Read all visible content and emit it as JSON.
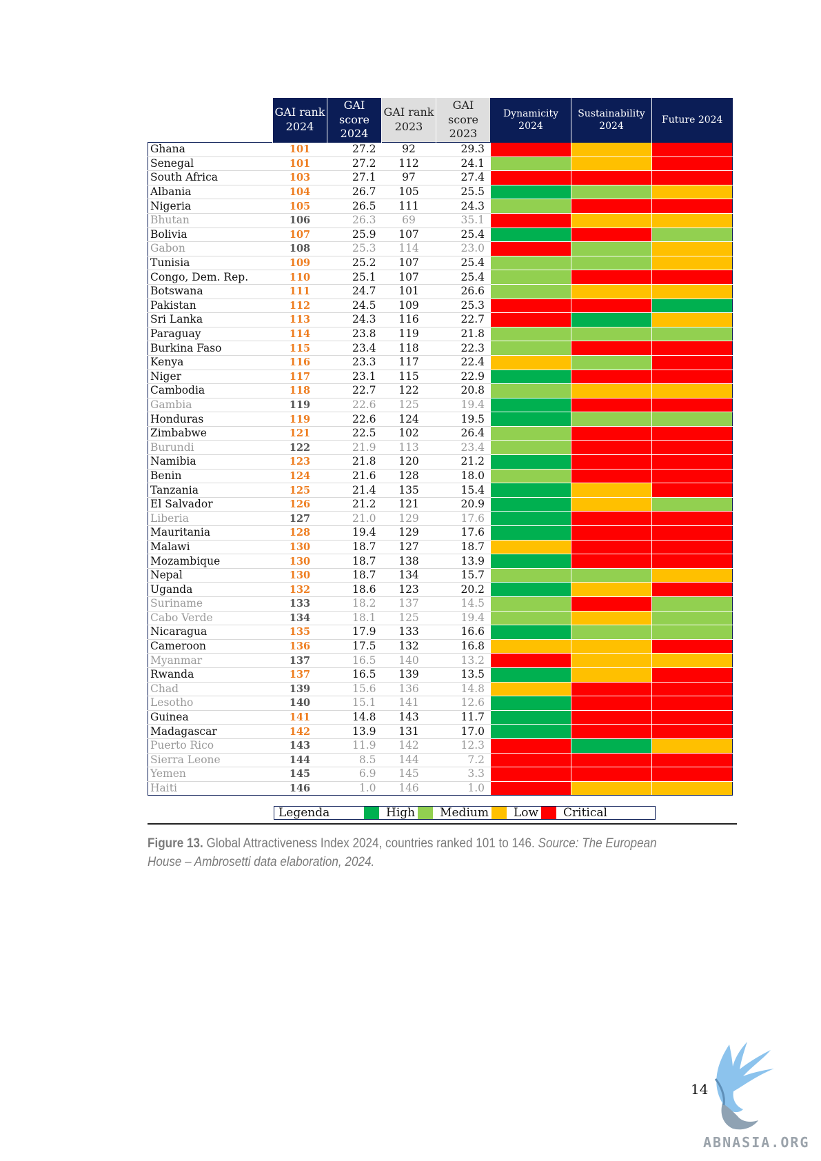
{
  "colors": {
    "High": "#00b050",
    "Medium": "#92d050",
    "Low": "#ffc000",
    "Critical": "#ff0000",
    "header_dark": "#0b1d56",
    "rank_orange": "#ee7d1f"
  },
  "table": {
    "headers": {
      "rank_2024": [
        "GAI rank",
        "2024"
      ],
      "score_2024": [
        "GAI score",
        "2024"
      ],
      "rank_2023": [
        "GAI rank",
        "2023"
      ],
      "score_2023": [
        "GAI score",
        "2023"
      ],
      "dynamicity": [
        "Dynamicity",
        "2024"
      ],
      "sustainability": [
        "Sustainability",
        "2024"
      ],
      "future": [
        "Future 2024"
      ]
    },
    "rows": [
      {
        "country": "Ghana",
        "rank_2024": "101",
        "score_2024": "27.2",
        "rank_2023": "92",
        "score_2023": "29.3",
        "dynamicity": "Critical",
        "sustainability": "Low",
        "future": "Critical",
        "greyed": false
      },
      {
        "country": "Senegal",
        "rank_2024": "101",
        "score_2024": "27.2",
        "rank_2023": "112",
        "score_2023": "24.1",
        "dynamicity": "Medium",
        "sustainability": "Low",
        "future": "Critical",
        "greyed": false
      },
      {
        "country": "South Africa",
        "rank_2024": "103",
        "score_2024": "27.1",
        "rank_2023": "97",
        "score_2023": "27.4",
        "dynamicity": "Critical",
        "sustainability": "Critical",
        "future": "Critical",
        "greyed": false
      },
      {
        "country": "Albania",
        "rank_2024": "104",
        "score_2024": "26.7",
        "rank_2023": "105",
        "score_2023": "25.5",
        "dynamicity": "High",
        "sustainability": "Medium",
        "future": "Low",
        "greyed": false
      },
      {
        "country": "Nigeria",
        "rank_2024": "105",
        "score_2024": "26.5",
        "rank_2023": "111",
        "score_2023": "24.3",
        "dynamicity": "Medium",
        "sustainability": "Critical",
        "future": "Critical",
        "greyed": false
      },
      {
        "country": "Bhutan",
        "rank_2024": "106",
        "score_2024": "26.3",
        "rank_2023": "69",
        "score_2023": "35.1",
        "dynamicity": "Critical",
        "sustainability": "Low",
        "future": "Low",
        "greyed": true
      },
      {
        "country": "Bolivia",
        "rank_2024": "107",
        "score_2024": "25.9",
        "rank_2023": "107",
        "score_2023": "25.4",
        "dynamicity": "High",
        "sustainability": "Critical",
        "future": "Medium",
        "greyed": false
      },
      {
        "country": "Gabon",
        "rank_2024": "108",
        "score_2024": "25.3",
        "rank_2023": "114",
        "score_2023": "23.0",
        "dynamicity": "Critical",
        "sustainability": "Medium",
        "future": "Low",
        "greyed": true
      },
      {
        "country": "Tunisia",
        "rank_2024": "109",
        "score_2024": "25.2",
        "rank_2023": "107",
        "score_2023": "25.4",
        "dynamicity": "Medium",
        "sustainability": "Medium",
        "future": "Low",
        "greyed": false
      },
      {
        "country": "Congo, Dem. Rep.",
        "rank_2024": "110",
        "score_2024": "25.1",
        "rank_2023": "107",
        "score_2023": "25.4",
        "dynamicity": "Medium",
        "sustainability": "Critical",
        "future": "Critical",
        "greyed": false
      },
      {
        "country": "Botswana",
        "rank_2024": "111",
        "score_2024": "24.7",
        "rank_2023": "101",
        "score_2023": "26.6",
        "dynamicity": "Medium",
        "sustainability": "Low",
        "future": "Low",
        "greyed": false
      },
      {
        "country": "Pakistan",
        "rank_2024": "112",
        "score_2024": "24.5",
        "rank_2023": "109",
        "score_2023": "25.3",
        "dynamicity": "Critical",
        "sustainability": "Critical",
        "future": "High",
        "greyed": false
      },
      {
        "country": "Sri Lanka",
        "rank_2024": "113",
        "score_2024": "24.3",
        "rank_2023": "116",
        "score_2023": "22.7",
        "dynamicity": "Critical",
        "sustainability": "High",
        "future": "Low",
        "greyed": false
      },
      {
        "country": "Paraguay",
        "rank_2024": "114",
        "score_2024": "23.8",
        "rank_2023": "119",
        "score_2023": "21.8",
        "dynamicity": "Medium",
        "sustainability": "Medium",
        "future": "Medium",
        "greyed": false
      },
      {
        "country": "Burkina Faso",
        "rank_2024": "115",
        "score_2024": "23.4",
        "rank_2023": "118",
        "score_2023": "22.3",
        "dynamicity": "Medium",
        "sustainability": "Critical",
        "future": "Critical",
        "greyed": false
      },
      {
        "country": "Kenya",
        "rank_2024": "116",
        "score_2024": "23.3",
        "rank_2023": "117",
        "score_2023": "22.4",
        "dynamicity": "Low",
        "sustainability": "Medium",
        "future": "Critical",
        "greyed": false
      },
      {
        "country": "Niger",
        "rank_2024": "117",
        "score_2024": "23.1",
        "rank_2023": "115",
        "score_2023": "22.9",
        "dynamicity": "High",
        "sustainability": "Critical",
        "future": "Critical",
        "greyed": false
      },
      {
        "country": "Cambodia",
        "rank_2024": "118",
        "score_2024": "22.7",
        "rank_2023": "122",
        "score_2023": "20.8",
        "dynamicity": "Medium",
        "sustainability": "Low",
        "future": "Low",
        "greyed": false
      },
      {
        "country": "Gambia",
        "rank_2024": "119",
        "score_2024": "22.6",
        "rank_2023": "125",
        "score_2023": "19.4",
        "dynamicity": "High",
        "sustainability": "Critical",
        "future": "Critical",
        "greyed": true
      },
      {
        "country": "Honduras",
        "rank_2024": "119",
        "score_2024": "22.6",
        "rank_2023": "124",
        "score_2023": "19.5",
        "dynamicity": "High",
        "sustainability": "Medium",
        "future": "Medium",
        "greyed": false
      },
      {
        "country": "Zimbabwe",
        "rank_2024": "121",
        "score_2024": "22.5",
        "rank_2023": "102",
        "score_2023": "26.4",
        "dynamicity": "Medium",
        "sustainability": "Critical",
        "future": "Critical",
        "greyed": false
      },
      {
        "country": "Burundi",
        "rank_2024": "122",
        "score_2024": "21.9",
        "rank_2023": "113",
        "score_2023": "23.4",
        "dynamicity": "Medium",
        "sustainability": "Critical",
        "future": "Critical",
        "greyed": true
      },
      {
        "country": "Namibia",
        "rank_2024": "123",
        "score_2024": "21.8",
        "rank_2023": "120",
        "score_2023": "21.2",
        "dynamicity": "High",
        "sustainability": "Critical",
        "future": "Critical",
        "greyed": false
      },
      {
        "country": "Benin",
        "rank_2024": "124",
        "score_2024": "21.6",
        "rank_2023": "128",
        "score_2023": "18.0",
        "dynamicity": "Medium",
        "sustainability": "Critical",
        "future": "Critical",
        "greyed": false
      },
      {
        "country": "Tanzania",
        "rank_2024": "125",
        "score_2024": "21.4",
        "rank_2023": "135",
        "score_2023": "15.4",
        "dynamicity": "High",
        "sustainability": "Low",
        "future": "Critical",
        "greyed": false
      },
      {
        "country": "El Salvador",
        "rank_2024": "126",
        "score_2024": "21.2",
        "rank_2023": "121",
        "score_2023": "20.9",
        "dynamicity": "High",
        "sustainability": "Low",
        "future": "Medium",
        "greyed": false
      },
      {
        "country": "Liberia",
        "rank_2024": "127",
        "score_2024": "21.0",
        "rank_2023": "129",
        "score_2023": "17.6",
        "dynamicity": "High",
        "sustainability": "Critical",
        "future": "Critical",
        "greyed": true
      },
      {
        "country": "Mauritania",
        "rank_2024": "128",
        "score_2024": "19.4",
        "rank_2023": "129",
        "score_2023": "17.6",
        "dynamicity": "High",
        "sustainability": "Critical",
        "future": "Critical",
        "greyed": false
      },
      {
        "country": "Malawi",
        "rank_2024": "130",
        "score_2024": "18.7",
        "rank_2023": "127",
        "score_2023": "18.7",
        "dynamicity": "Low",
        "sustainability": "Critical",
        "future": "Critical",
        "greyed": false
      },
      {
        "country": "Mozambique",
        "rank_2024": "130",
        "score_2024": "18.7",
        "rank_2023": "138",
        "score_2023": "13.9",
        "dynamicity": "High",
        "sustainability": "Critical",
        "future": "Critical",
        "greyed": false
      },
      {
        "country": "Nepal",
        "rank_2024": "130",
        "score_2024": "18.7",
        "rank_2023": "134",
        "score_2023": "15.7",
        "dynamicity": "Medium",
        "sustainability": "Medium",
        "future": "Low",
        "greyed": false
      },
      {
        "country": "Uganda",
        "rank_2024": "132",
        "score_2024": "18.6",
        "rank_2023": "123",
        "score_2023": "20.2",
        "dynamicity": "High",
        "sustainability": "Low",
        "future": "Critical",
        "greyed": false
      },
      {
        "country": "Suriname",
        "rank_2024": "133",
        "score_2024": "18.2",
        "rank_2023": "137",
        "score_2023": "14.5",
        "dynamicity": "Medium",
        "sustainability": "Critical",
        "future": "Medium",
        "greyed": true
      },
      {
        "country": "Cabo Verde",
        "rank_2024": "134",
        "score_2024": "18.1",
        "rank_2023": "125",
        "score_2023": "19.4",
        "dynamicity": "Medium",
        "sustainability": "Low",
        "future": "Medium",
        "greyed": true
      },
      {
        "country": "Nicaragua",
        "rank_2024": "135",
        "score_2024": "17.9",
        "rank_2023": "133",
        "score_2023": "16.6",
        "dynamicity": "High",
        "sustainability": "Medium",
        "future": "Medium",
        "greyed": false
      },
      {
        "country": "Cameroon",
        "rank_2024": "136",
        "score_2024": "17.5",
        "rank_2023": "132",
        "score_2023": "16.8",
        "dynamicity": "Low",
        "sustainability": "Low",
        "future": "Critical",
        "greyed": false
      },
      {
        "country": "Myanmar",
        "rank_2024": "137",
        "score_2024": "16.5",
        "rank_2023": "140",
        "score_2023": "13.2",
        "dynamicity": "Critical",
        "sustainability": "Low",
        "future": "Low",
        "greyed": true
      },
      {
        "country": "Rwanda",
        "rank_2024": "137",
        "score_2024": "16.5",
        "rank_2023": "139",
        "score_2023": "13.5",
        "dynamicity": "High",
        "sustainability": "Low",
        "future": "Critical",
        "greyed": false
      },
      {
        "country": "Chad",
        "rank_2024": "139",
        "score_2024": "15.6",
        "rank_2023": "136",
        "score_2023": "14.8",
        "dynamicity": "Low",
        "sustainability": "Critical",
        "future": "Critical",
        "greyed": true
      },
      {
        "country": "Lesotho",
        "rank_2024": "140",
        "score_2024": "15.1",
        "rank_2023": "141",
        "score_2023": "12.6",
        "dynamicity": "High",
        "sustainability": "Critical",
        "future": "Critical",
        "greyed": true
      },
      {
        "country": "Guinea",
        "rank_2024": "141",
        "score_2024": "14.8",
        "rank_2023": "143",
        "score_2023": "11.7",
        "dynamicity": "High",
        "sustainability": "Critical",
        "future": "Critical",
        "greyed": false
      },
      {
        "country": "Madagascar",
        "rank_2024": "142",
        "score_2024": "13.9",
        "rank_2023": "131",
        "score_2023": "17.0",
        "dynamicity": "High",
        "sustainability": "Critical",
        "future": "Critical",
        "greyed": false
      },
      {
        "country": "Puerto Rico",
        "rank_2024": "143",
        "score_2024": "11.9",
        "rank_2023": "142",
        "score_2023": "12.3",
        "dynamicity": "Critical",
        "sustainability": "High",
        "future": "Low",
        "greyed": true
      },
      {
        "country": "Sierra Leone",
        "rank_2024": "144",
        "score_2024": "8.5",
        "rank_2023": "144",
        "score_2023": "7.2",
        "dynamicity": "Critical",
        "sustainability": "Critical",
        "future": "Critical",
        "greyed": true
      },
      {
        "country": "Yemen",
        "rank_2024": "145",
        "score_2024": "6.9",
        "rank_2023": "145",
        "score_2023": "3.3",
        "dynamicity": "Critical",
        "sustainability": "Critical",
        "future": "Critical",
        "greyed": true
      },
      {
        "country": "Haiti",
        "rank_2024": "146",
        "score_2024": "1.0",
        "rank_2023": "146",
        "score_2023": "1.0",
        "dynamicity": "Critical",
        "sustainability": "Low",
        "future": "Low",
        "greyed": true
      }
    ]
  },
  "legend": {
    "title": "Legenda",
    "items": [
      {
        "label": "High",
        "level": "High"
      },
      {
        "label": "Medium",
        "level": "Medium"
      },
      {
        "label": "Low",
        "level": "Low"
      },
      {
        "label": "Critical",
        "level": "Critical"
      }
    ]
  },
  "caption": {
    "figure_label": "Figure 13.",
    "text": " Global Attractiveness Index 2024, countries ranked 101 to 146. ",
    "source": "Source: The European House – Ambrosetti data elaboration, 2024."
  },
  "page_number": "14",
  "watermark": {
    "text": "ABNASIA.ORG",
    "icon": "griffin-logo-icon"
  }
}
